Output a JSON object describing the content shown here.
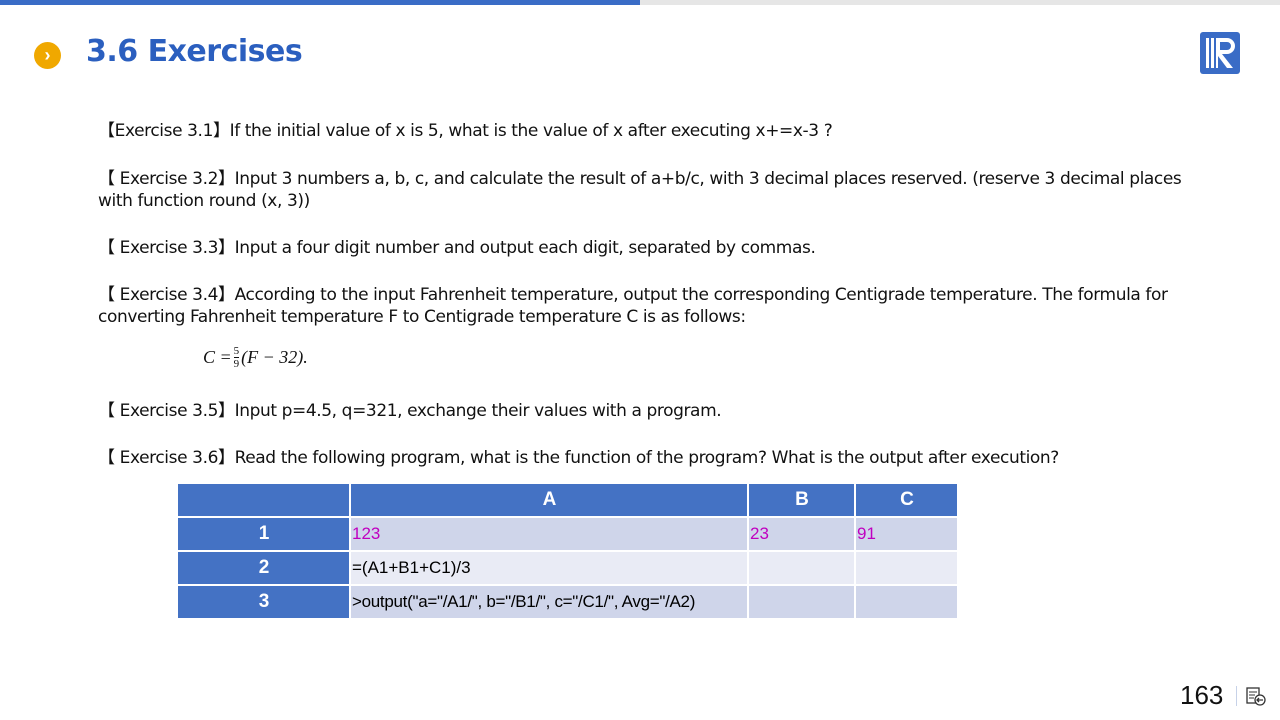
{
  "header": {
    "title": "3.6 Exercises",
    "bullet_icon": "chevron-right-circle-icon",
    "logo": "R",
    "accent": "#3a6cc6",
    "bullet_color": "#f0a800"
  },
  "exercises": [
    "【Exercise 3.1】If the initial value of x is 5, what is the value of x after executing x+=x-3 ?",
    "【 Exercise 3.2】Input 3 numbers a, b, c, and calculate the result of a+b/c, with 3 decimal places reserved. (reserve 3 decimal places with function round (x, 3))",
    "【 Exercise 3.3】Input a four digit number and output each digit, separated by commas.",
    "【 Exercise 3.4】According to the input Fahrenheit temperature, output the corresponding Centigrade temperature. The formula for converting Fahrenheit temperature F to Centigrade temperature C is as follows:",
    "【 Exercise 3.5】Input p=4.5, q=321, exchange their values with a program.",
    "【 Exercise 3.6】Read the following program, what is the function of the program? What is the output after execution?"
  ],
  "formula": {
    "lhs": "C =",
    "num": "5",
    "den": "9",
    "rhs": "(F − 32)."
  },
  "table": {
    "columns": [
      "",
      "A",
      "B",
      "C"
    ],
    "rows": [
      {
        "label": "1",
        "cells": [
          "123",
          "23",
          "91"
        ]
      },
      {
        "label": "2",
        "cells": [
          "=(A1+B1+C1)/3",
          "",
          ""
        ]
      },
      {
        "label": "3",
        "cells": [
          ">output(\"a=\"/A1/\", b=\"/B1/\", c=\"/C1/\", Avg=\"/A2)",
          "",
          ""
        ]
      }
    ]
  },
  "footer": {
    "page_number": "163",
    "nav_icon": "return-to-menu-icon"
  }
}
